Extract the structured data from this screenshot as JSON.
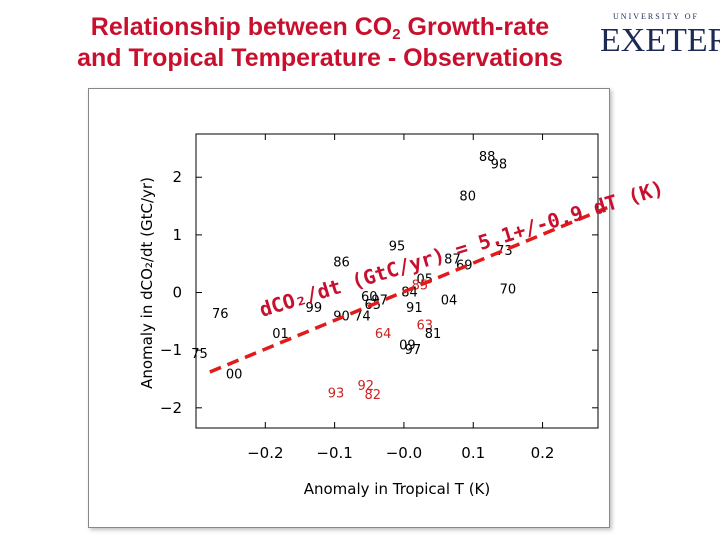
{
  "slide": {
    "title_part1": "Relationship between CO",
    "title_sub": "2",
    "title_part2": " Growth-rate",
    "title_line2": "and Tropical Temperature - Observations",
    "logo_small": "UNIVERSITY OF",
    "logo_large": "EXETER"
  },
  "colors": {
    "title": "#c8102e",
    "fit_line": "#e21a1a",
    "highlight_years": "#cc2222",
    "normal_years": "#000000"
  },
  "chart_data": {
    "type": "scatter",
    "title": "",
    "xlabel": "Anomaly in Tropical T (K)",
    "ylabel": "Anomaly in dCO₂/dt (GtC/yr)",
    "xlim": [
      -0.3,
      0.28
    ],
    "ylim": [
      -2.35,
      2.75
    ],
    "xticks": [
      -0.2,
      -0.1,
      0.0,
      0.1,
      0.2
    ],
    "xtick_labels": [
      "−0.2",
      "−0.1",
      "−0.0",
      "0.1",
      "0.2"
    ],
    "yticks": [
      2,
      1,
      0,
      -1,
      -2
    ],
    "ytick_labels": [
      "2",
      "1",
      "0",
      "−1",
      "−2"
    ],
    "points": [
      {
        "label": "88",
        "x": 0.12,
        "y": 2.35
      },
      {
        "label": "98",
        "x": 0.137,
        "y": 2.22
      },
      {
        "label": "80",
        "x": 0.092,
        "y": 1.67
      },
      {
        "label": "95",
        "x": -0.01,
        "y": 0.8
      },
      {
        "label": "86",
        "x": -0.09,
        "y": 0.52
      },
      {
        "label": "73",
        "x": 0.145,
        "y": 0.72
      },
      {
        "label": "87",
        "x": 0.07,
        "y": 0.57
      },
      {
        "label": "69",
        "x": 0.087,
        "y": 0.47
      },
      {
        "label": "05",
        "x": 0.03,
        "y": 0.23
      },
      {
        "label": "85",
        "x": 0.023,
        "y": 0.12,
        "highlight": true
      },
      {
        "label": "70",
        "x": 0.15,
        "y": 0.05
      },
      {
        "label": "04",
        "x": 0.065,
        "y": -0.14
      },
      {
        "label": "84",
        "x": 0.008,
        "y": 0.0
      },
      {
        "label": "60",
        "x": -0.05,
        "y": -0.08
      },
      {
        "label": "65",
        "x": -0.045,
        "y": -0.22
      },
      {
        "label": "97",
        "x": -0.035,
        "y": -0.14
      },
      {
        "label": "91",
        "x": 0.015,
        "y": -0.27
      },
      {
        "label": "99",
        "x": -0.13,
        "y": -0.27
      },
      {
        "label": "90",
        "x": -0.09,
        "y": -0.42
      },
      {
        "label": "74",
        "x": -0.06,
        "y": -0.42
      },
      {
        "label": "76",
        "x": -0.265,
        "y": -0.37
      },
      {
        "label": "01",
        "x": -0.178,
        "y": -0.72
      },
      {
        "label": "64",
        "x": -0.03,
        "y": -0.72,
        "highlight": true
      },
      {
        "label": "63",
        "x": 0.03,
        "y": -0.57,
        "highlight": true
      },
      {
        "label": "81",
        "x": 0.042,
        "y": -0.72
      },
      {
        "label": "09",
        "x": 0.005,
        "y": -0.92
      },
      {
        "label": "97",
        "x": 0.013,
        "y": -1.0
      },
      {
        "label": "75",
        "x": -0.295,
        "y": -1.07
      },
      {
        "label": "00",
        "x": -0.245,
        "y": -1.42
      },
      {
        "label": "93",
        "x": -0.098,
        "y": -1.75,
        "highlight": true
      },
      {
        "label": "92",
        "x": -0.055,
        "y": -1.62,
        "highlight": true
      },
      {
        "label": "82",
        "x": -0.045,
        "y": -1.78,
        "highlight": true
      }
    ],
    "fit_line": {
      "slope": 5.1,
      "intercept": 0.05,
      "x_range": [
        -0.28,
        0.28
      ]
    },
    "annotation": "dCO₂/dt (GtC/yr) = 5.1+/-0.9 dT (K)"
  }
}
